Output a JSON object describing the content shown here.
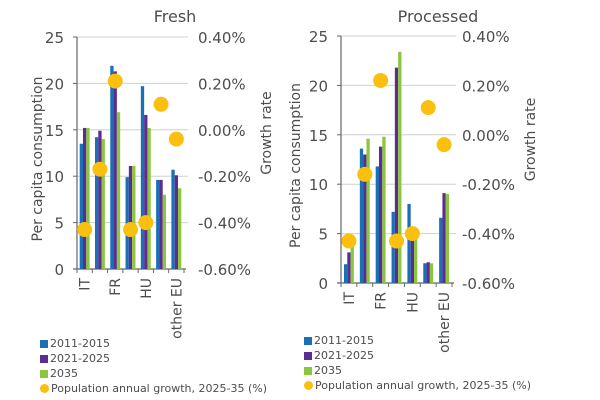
{
  "chart_data": [
    {
      "type": "bar",
      "title": "Fresh",
      "ylabel": "Per capita consumption",
      "y2label": "Growth rate",
      "ylim": [
        0,
        25
      ],
      "yticks": [
        0,
        5,
        10,
        15,
        20,
        25
      ],
      "y2lim": [
        -0.6,
        0.4
      ],
      "y2ticks": [
        "-0.60%",
        "-0.40%",
        "-0.20%",
        "0.00%",
        "0.20%",
        "0.40%"
      ],
      "categories": [
        "IT",
        "",
        "FR",
        "",
        "HU",
        "",
        "other EU"
      ],
      "grid": true,
      "series": [
        {
          "name": "2011-2015",
          "color": "#1a6fb5",
          "values": [
            13.5,
            14.2,
            21.9,
            9.9,
            19.7,
            9.6,
            10.7
          ]
        },
        {
          "name": "2021-2025",
          "color": "#5b2d91",
          "values": [
            15.2,
            14.9,
            21.3,
            11.1,
            16.6,
            9.6,
            10.1
          ]
        },
        {
          "name": "2035",
          "color": "#8cc63f",
          "values": [
            15.2,
            14.0,
            16.9,
            11.1,
            15.2,
            8.0,
            8.7
          ]
        }
      ],
      "dots": {
        "name": "Population annual growth, 2025-35 (%)",
        "color": "#fbbf0e",
        "values": [
          -0.43,
          -0.17,
          0.21,
          -0.43,
          -0.4,
          0.11,
          -0.04
        ]
      }
    },
    {
      "type": "bar",
      "title": "Processed",
      "ylabel": "Per capita consumption",
      "y2label": "Growth rate",
      "ylim": [
        0,
        25
      ],
      "yticks": [
        0,
        5,
        10,
        15,
        20,
        25
      ],
      "y2lim": [
        -0.6,
        0.4
      ],
      "y2ticks": [
        "-0.60%",
        "-0.40%",
        "-0.20%",
        "0.00%",
        "0.20%",
        "0.40%"
      ],
      "categories": [
        "IT",
        "",
        "FR",
        "",
        "HU",
        "",
        "other EU"
      ],
      "grid": true,
      "series": [
        {
          "name": "2011-2015",
          "color": "#1a6fb5",
          "values": [
            1.9,
            13.6,
            11.8,
            7.2,
            8.0,
            2.0,
            6.6
          ]
        },
        {
          "name": "2021-2025",
          "color": "#5b2d91",
          "values": [
            3.1,
            13.0,
            13.8,
            21.8,
            5.4,
            2.1,
            9.1
          ]
        },
        {
          "name": "2035",
          "color": "#8cc63f",
          "values": [
            4.4,
            14.6,
            14.8,
            23.4,
            4.8,
            2.0,
            9.0
          ]
        }
      ],
      "dots": {
        "name": "Population annual growth, 2025-35 (%)",
        "color": "#fbbf0e",
        "values": [
          -0.43,
          -0.16,
          0.22,
          -0.43,
          -0.4,
          0.11,
          -0.04
        ]
      }
    }
  ],
  "legend": {
    "items": [
      {
        "label": "2011-2015",
        "color": "#1a6fb5",
        "shape": "square"
      },
      {
        "label": "2021-2025",
        "color": "#5b2d91",
        "shape": "square"
      },
      {
        "label": "2035",
        "color": "#8cc63f",
        "shape": "square"
      },
      {
        "label": "Population annual growth, 2025-35 (%)",
        "color": "#fbbf0e",
        "shape": "circle"
      }
    ]
  }
}
